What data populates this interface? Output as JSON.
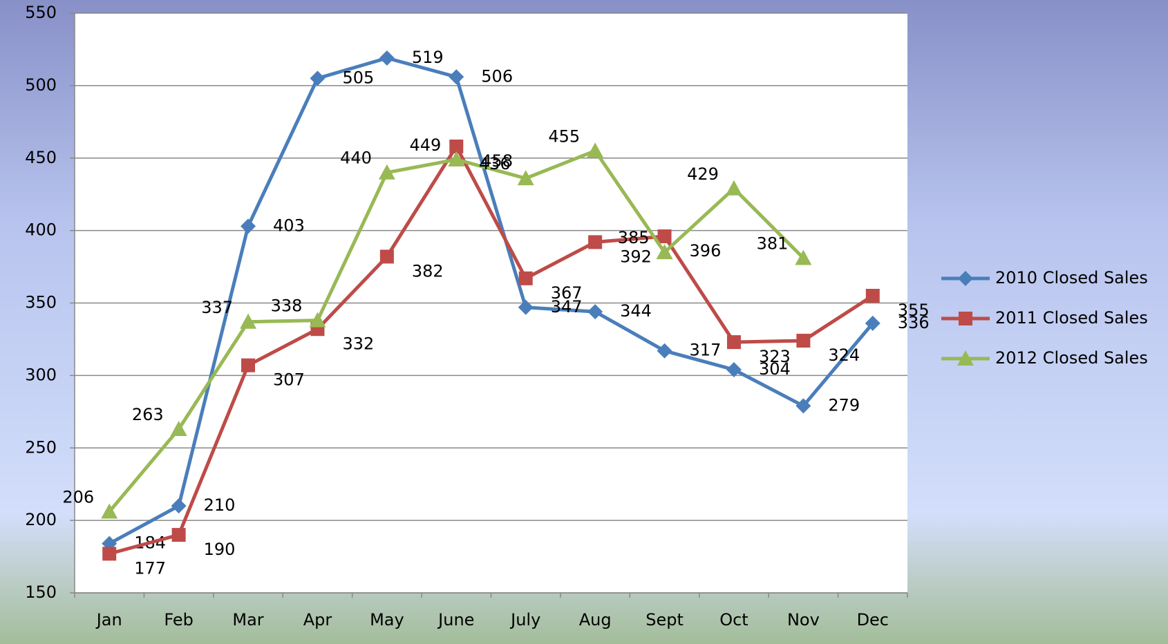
{
  "chart_data": {
    "type": "line",
    "categories": [
      "Jan",
      "Feb",
      "Mar",
      "Apr",
      "May",
      "June",
      "July",
      "Aug",
      "Sept",
      "Oct",
      "Nov",
      "Dec"
    ],
    "series": [
      {
        "name": "2010 Closed Sales",
        "color": "#4a7ebb",
        "marker": "diamond",
        "values": [
          184,
          210,
          403,
          505,
          519,
          506,
          347,
          344,
          317,
          304,
          279,
          336
        ]
      },
      {
        "name": "2011 Closed Sales",
        "color": "#be4b48",
        "marker": "square",
        "values": [
          177,
          190,
          307,
          332,
          382,
          458,
          367,
          392,
          396,
          323,
          324,
          355
        ]
      },
      {
        "name": "2012 Closed Sales",
        "color": "#98b954",
        "marker": "triangle",
        "values": [
          206,
          263,
          337,
          338,
          440,
          449,
          436,
          455,
          385,
          429,
          381,
          null
        ]
      }
    ],
    "ylim": [
      150,
      550
    ],
    "yticks": [
      150,
      200,
      250,
      300,
      350,
      400,
      450,
      500,
      550
    ],
    "grid": true,
    "legend": "right"
  }
}
